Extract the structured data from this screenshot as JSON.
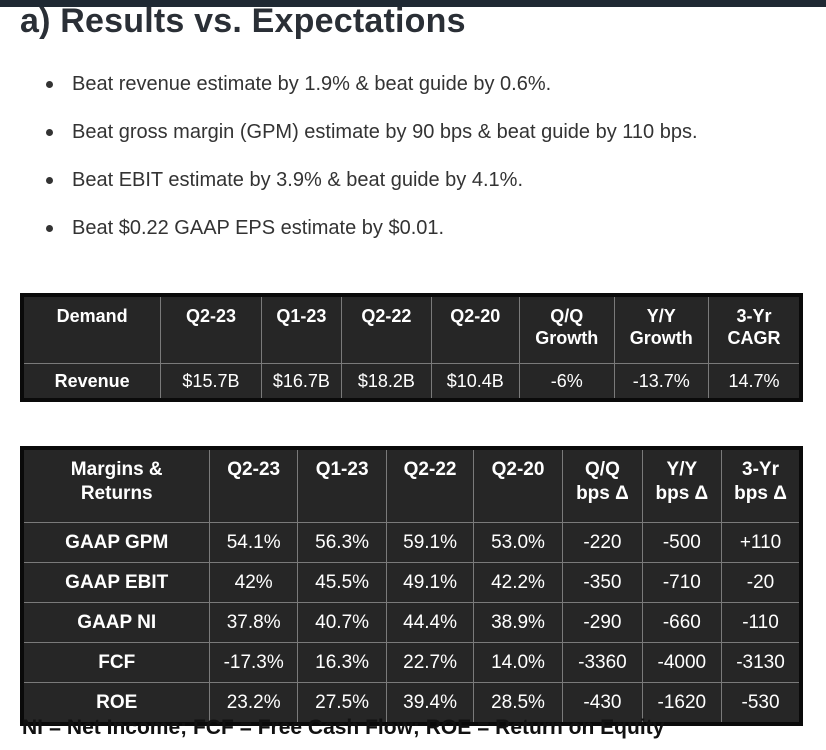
{
  "heading": "a) Results vs. Expectations",
  "bullets": [
    "Beat revenue estimate by 1.9% & beat guide by 0.6%.",
    "Beat gross margin (GPM) estimate by 90 bps & beat guide by 110 bps.",
    "Beat EBIT estimate by 3.9% & beat guide by 4.1%.",
    "Beat $0.22 GAAP EPS estimate by $0.01."
  ],
  "demand_table": {
    "headers": [
      [
        "Demand"
      ],
      [
        "Q2-23"
      ],
      [
        "Q1-23"
      ],
      [
        "Q2-22"
      ],
      [
        "Q2-20"
      ],
      [
        "Q/Q",
        "Growth"
      ],
      [
        "Y/Y",
        "Growth"
      ],
      [
        "3-Yr",
        "CAGR"
      ]
    ],
    "rows": [
      [
        "Revenue",
        "$15.7B",
        "$16.7B",
        "$18.2B",
        "$10.4B",
        "-6%",
        "-13.7%",
        "14.7%"
      ]
    ]
  },
  "margins_table": {
    "headers": [
      [
        "Margins &",
        "Returns"
      ],
      [
        "Q2-23"
      ],
      [
        "Q1-23"
      ],
      [
        "Q2-22"
      ],
      [
        "Q2-20"
      ],
      [
        "Q/Q",
        "bps Δ"
      ],
      [
        "Y/Y",
        "bps Δ"
      ],
      [
        "3-Yr",
        "bps Δ"
      ]
    ],
    "rows": [
      [
        "GAAP GPM",
        "54.1%",
        "56.3%",
        "59.1%",
        "53.0%",
        "-220",
        "-500",
        "+110"
      ],
      [
        "GAAP EBIT",
        "42%",
        "45.5%",
        "49.1%",
        "42.2%",
        "-350",
        "-710",
        "-20"
      ],
      [
        "GAAP NI",
        "37.8%",
        "40.7%",
        "44.4%",
        "38.9%",
        "-290",
        "-660",
        "-110"
      ],
      [
        "FCF",
        "-17.3%",
        "16.3%",
        "22.7%",
        "14.0%",
        "-3360",
        "-4000",
        "-3130"
      ],
      [
        "ROE",
        "23.2%",
        "27.5%",
        "39.4%",
        "28.5%",
        "-430",
        "-1620",
        "-530"
      ]
    ]
  },
  "footnote": "NI = Net Income; FCF = Free Cash Flow; ROE = Return on Equity"
}
